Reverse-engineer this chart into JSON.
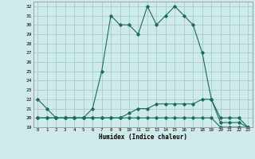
{
  "xlabel": "Humidex (Indice chaleur)",
  "background_color": "#ceeaea",
  "grid_color": "#aacfcf",
  "line_color": "#1a6b5a",
  "xlim": [
    -0.5,
    23.5
  ],
  "ylim": [
    19,
    32.5
  ],
  "yticks": [
    19,
    20,
    21,
    22,
    23,
    24,
    25,
    26,
    27,
    28,
    29,
    30,
    31,
    32
  ],
  "xticks": [
    0,
    1,
    2,
    3,
    4,
    5,
    6,
    7,
    8,
    9,
    10,
    11,
    12,
    13,
    14,
    15,
    16,
    17,
    18,
    19,
    20,
    21,
    22,
    23
  ],
  "series1_x": [
    0,
    1,
    2,
    3,
    4,
    5,
    6,
    7,
    8,
    9,
    10,
    11,
    12,
    13,
    14,
    15,
    16,
    17,
    18,
    19,
    20,
    21,
    22,
    23
  ],
  "series1_y": [
    22,
    21,
    20,
    20,
    20,
    20,
    21,
    25,
    31,
    30,
    30,
    29,
    32,
    30,
    31,
    32,
    31,
    30,
    27,
    22,
    20,
    20,
    20,
    19
  ],
  "series2_x": [
    0,
    1,
    2,
    3,
    4,
    5,
    6,
    7,
    8,
    9,
    10,
    11,
    12,
    13,
    14,
    15,
    16,
    17,
    18,
    19,
    20,
    21,
    22,
    23
  ],
  "series2_y": [
    20,
    20,
    20,
    20,
    20,
    20,
    20,
    20,
    20,
    20,
    20,
    20,
    20,
    20,
    20,
    20,
    20,
    20,
    20,
    20,
    19,
    19,
    19,
    19
  ],
  "series3_x": [
    0,
    1,
    2,
    3,
    4,
    5,
    6,
    7,
    8,
    9,
    10,
    11,
    12,
    13,
    14,
    15,
    16,
    17,
    18,
    19,
    20,
    21,
    22,
    23
  ],
  "series3_y": [
    20,
    20,
    20,
    20,
    20,
    20,
    20,
    20,
    20,
    20,
    20.5,
    21,
    21,
    21.5,
    21.5,
    21.5,
    21.5,
    21.5,
    22,
    22,
    19.5,
    19.5,
    19.5,
    19
  ]
}
